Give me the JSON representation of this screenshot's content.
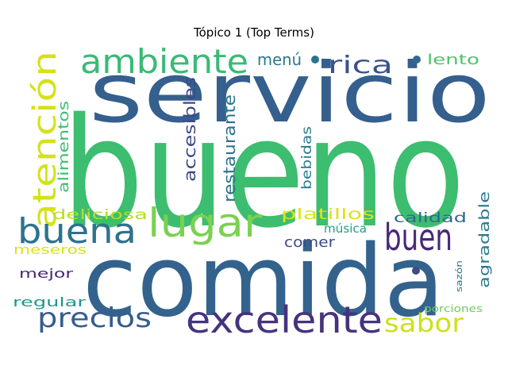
{
  "title": "Tópico 1 (Top Terms)",
  "chart_data": {
    "type": "wordcloud",
    "title": "Tópico 1 (Top Terms)",
    "words": [
      {
        "text": "bueno",
        "color": "#3dbd6f"
      },
      {
        "text": "servicio",
        "color": "#355f8d"
      },
      {
        "text": "comida",
        "color": "#33638d"
      },
      {
        "text": "ambiente",
        "color": "#3aba76"
      },
      {
        "text": "atención",
        "color": "#d4e21a"
      },
      {
        "text": "buena",
        "color": "#2c728e"
      },
      {
        "text": "lugar",
        "color": "#7ad151"
      },
      {
        "text": "buen",
        "color": "#482878"
      },
      {
        "text": "excelente",
        "color": "#46337e"
      },
      {
        "text": "precios",
        "color": "#365d8d"
      },
      {
        "text": "sabor",
        "color": "#cde11d"
      },
      {
        "text": "rica",
        "color": "#3b528b"
      },
      {
        "text": "menú",
        "color": "#2a788e"
      },
      {
        "text": "lento",
        "color": "#4ec36b"
      },
      {
        "text": "alimentos",
        "color": "#3dbc74"
      },
      {
        "text": "accesibles",
        "color": "#3e4989"
      },
      {
        "text": "restaurante",
        "color": "#2c738e"
      },
      {
        "text": "bebidas",
        "color": "#287c8e"
      },
      {
        "text": "platillos",
        "color": "#dde318"
      },
      {
        "text": "deliciosa",
        "color": "#b5de2b"
      },
      {
        "text": "calidad",
        "color": "#31688e"
      },
      {
        "text": "agradable",
        "color": "#2a788e"
      },
      {
        "text": "música",
        "color": "#1f9e89"
      },
      {
        "text": "comer",
        "color": "#3e4a89"
      },
      {
        "text": "meseros",
        "color": "#dae319"
      },
      {
        "text": "mejor",
        "color": "#482475"
      },
      {
        "text": "regular",
        "color": "#1f968b"
      },
      {
        "text": "sazón",
        "color": "#2c728e"
      },
      {
        "text": "porciones",
        "color": "#6ccd5a"
      }
    ],
    "dots": [
      {
        "color": "#2c728e"
      },
      {
        "color": "#31688e"
      },
      {
        "color": "#3e4a89"
      }
    ]
  }
}
